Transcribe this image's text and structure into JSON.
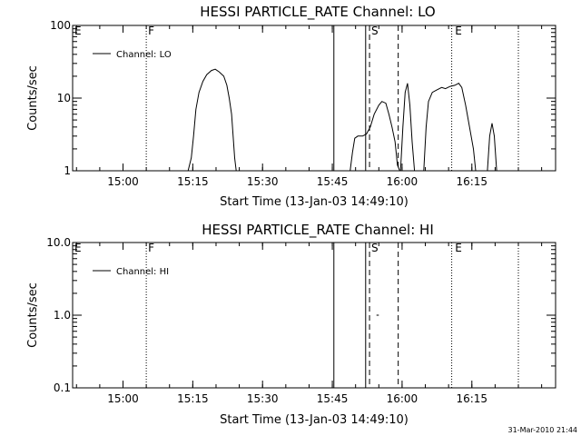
{
  "chart_data": [
    {
      "type": "line",
      "title": "HESSI PARTICLE_RATE Channel: LO",
      "xlabel": "Start Time (13-Jan-03 14:49:10)",
      "ylabel": "Counts/sec",
      "yscale": "log",
      "ylim": [
        1,
        100
      ],
      "y_ticks": [
        1,
        10,
        100
      ],
      "y_tick_labels": [
        "1",
        "10",
        "100"
      ],
      "xlim": [
        "14:49:10",
        "16:33:00"
      ],
      "x_ticks": [
        "15:00",
        "15:15",
        "15:30",
        "15:45",
        "16:00",
        "16:15"
      ],
      "grid": false,
      "legend": {
        "position": "top-left",
        "entries": [
          "Channel: LO"
        ]
      },
      "flag_labels": [
        {
          "text": "E",
          "time": "14:49:10"
        },
        {
          "text": "F",
          "time": "15:05:00"
        },
        {
          "text": "S",
          "time": "15:53:00"
        },
        {
          "text": "E",
          "time": "16:11:00"
        }
      ],
      "markers": [
        {
          "time": "15:05:00",
          "style": "dotted"
        },
        {
          "time": "15:45:20",
          "style": "solid"
        },
        {
          "time": "15:52:10",
          "style": "solid"
        },
        {
          "time": "15:53:00",
          "style": "dashed"
        },
        {
          "time": "15:59:10",
          "style": "dashed"
        },
        {
          "time": "16:10:40",
          "style": "dotted"
        },
        {
          "time": "16:25:00",
          "style": "dotted"
        }
      ],
      "series": [
        {
          "name": "Channel: LO",
          "segments": [
            [
              [
                "15:14:00",
                1.0
              ],
              [
                "15:14:40",
                1.5
              ],
              [
                "15:15:10",
                3.0
              ],
              [
                "15:15:40",
                7.0
              ],
              [
                "15:16:20",
                12.0
              ],
              [
                "15:17:10",
                17.0
              ],
              [
                "15:18:00",
                21.0
              ],
              [
                "15:19:00",
                24.0
              ],
              [
                "15:19:50",
                25.0
              ],
              [
                "15:20:40",
                23.0
              ],
              [
                "15:21:40",
                20.0
              ],
              [
                "15:22:20",
                15.0
              ],
              [
                "15:22:50",
                10.0
              ],
              [
                "15:23:20",
                6.0
              ],
              [
                "15:23:40",
                3.0
              ],
              [
                "15:24:00",
                1.5
              ],
              [
                "15:24:20",
                1.0
              ]
            ],
            [
              [
                "15:48:50",
                1.0
              ],
              [
                "15:49:20",
                1.8
              ],
              [
                "15:49:50",
                2.8
              ],
              [
                "15:50:30",
                3.0
              ],
              [
                "15:51:30",
                3.0
              ],
              [
                "15:52:20",
                3.2
              ],
              [
                "15:53:10",
                4.0
              ],
              [
                "15:54:00",
                6.0
              ],
              [
                "15:55:00",
                8.0
              ],
              [
                "15:55:40",
                9.0
              ],
              [
                "15:56:30",
                8.5
              ],
              [
                "15:57:10",
                6.0
              ],
              [
                "15:57:50",
                4.0
              ],
              [
                "15:58:30",
                2.5
              ],
              [
                "15:59:00",
                1.2
              ],
              [
                "15:59:30",
                1.0
              ]
            ],
            [
              [
                "15:59:40",
                1.0
              ],
              [
                "16:00:10",
                4.0
              ],
              [
                "16:00:40",
                12.0
              ],
              [
                "16:01:10",
                16.0
              ],
              [
                "16:01:40",
                8.0
              ],
              [
                "16:02:10",
                2.5
              ],
              [
                "16:02:40",
                1.0
              ]
            ],
            [
              [
                "16:04:40",
                1.0
              ],
              [
                "16:05:10",
                4.0
              ],
              [
                "16:05:40",
                9.0
              ],
              [
                "16:06:30",
                12.0
              ],
              [
                "16:07:30",
                13.0
              ],
              [
                "16:08:30",
                14.0
              ],
              [
                "16:09:20",
                13.5
              ],
              [
                "16:10:20",
                14.5
              ],
              [
                "16:11:20",
                15.0
              ],
              [
                "16:12:10",
                16.0
              ],
              [
                "16:12:50",
                14.0
              ],
              [
                "16:13:40",
                8.0
              ],
              [
                "16:14:30",
                4.0
              ],
              [
                "16:15:20",
                2.0
              ],
              [
                "16:15:50",
                1.0
              ]
            ],
            [
              [
                "16:18:20",
                1.0
              ],
              [
                "16:18:50",
                3.0
              ],
              [
                "16:19:20",
                4.5
              ],
              [
                "16:19:50",
                3.0
              ],
              [
                "16:20:20",
                1.0
              ]
            ]
          ]
        }
      ]
    },
    {
      "type": "line",
      "title": "HESSI PARTICLE_RATE Channel: HI",
      "xlabel": "Start Time (13-Jan-03 14:49:10)",
      "ylabel": "Counts/sec",
      "yscale": "log",
      "ylim": [
        0.1,
        10
      ],
      "y_ticks": [
        0.1,
        1,
        10
      ],
      "y_tick_labels": [
        "0.1",
        "1.0",
        "10.0"
      ],
      "xlim": [
        "14:49:10",
        "16:33:00"
      ],
      "x_ticks": [
        "15:00",
        "15:15",
        "15:30",
        "15:45",
        "16:00",
        "16:15"
      ],
      "grid": false,
      "legend": {
        "position": "top-left",
        "entries": [
          "Channel: HI"
        ]
      },
      "flag_labels": [
        {
          "text": "E",
          "time": "14:49:10"
        },
        {
          "text": "F",
          "time": "15:05:00"
        },
        {
          "text": "S",
          "time": "15:53:00"
        },
        {
          "text": "E",
          "time": "16:11:00"
        }
      ],
      "markers": [
        {
          "time": "15:05:00",
          "style": "dotted"
        },
        {
          "time": "15:45:20",
          "style": "solid"
        },
        {
          "time": "15:52:10",
          "style": "solid"
        },
        {
          "time": "15:53:00",
          "style": "dashed"
        },
        {
          "time": "15:59:10",
          "style": "dashed"
        },
        {
          "time": "16:10:40",
          "style": "dotted"
        },
        {
          "time": "16:25:00",
          "style": "dotted"
        }
      ],
      "series": [
        {
          "name": "Channel: HI",
          "segments": [
            [
              [
                "15:54:30",
                1.0
              ],
              [
                "15:55:00",
                1.0
              ]
            ]
          ]
        }
      ]
    }
  ],
  "footer": {
    "timestamp": "31-Mar-2010 21:44"
  }
}
